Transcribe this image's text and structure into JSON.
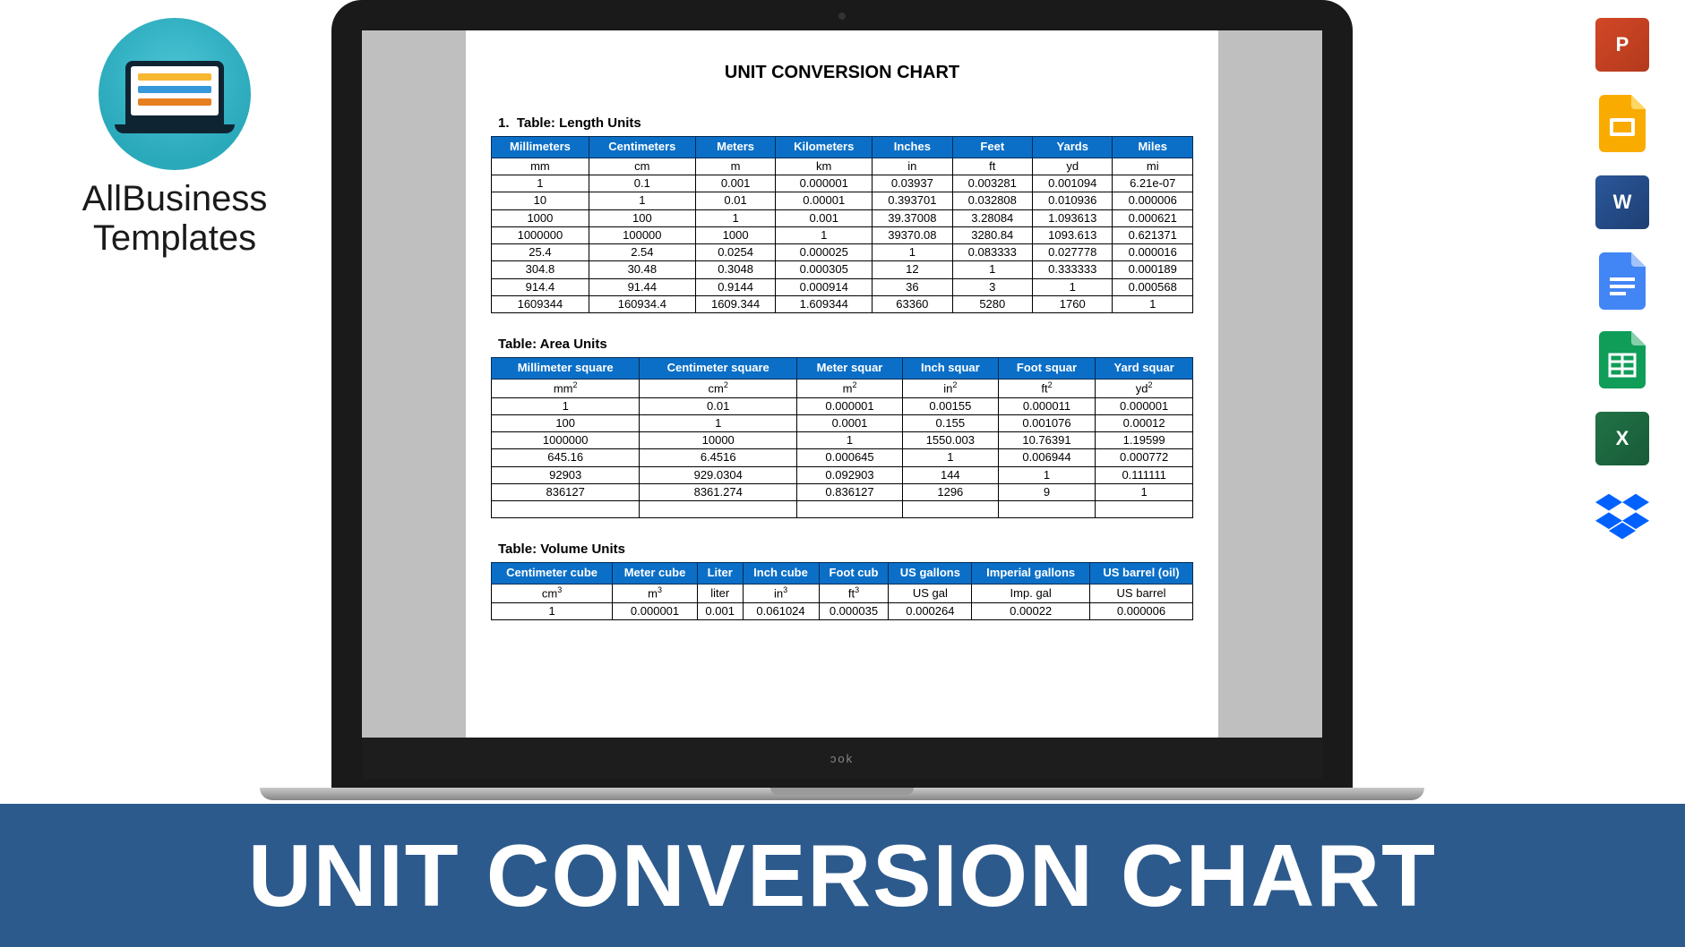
{
  "brand": {
    "name_line1": "AllBusiness",
    "name_line2": "Templates",
    "logo_bg": "#2aa9bb",
    "logo_laptop_color": "#0f2433"
  },
  "footer": {
    "title": "UNIT CONVERSION CHART",
    "bg_color": "#2d5a8c",
    "text_color": "#ffffff"
  },
  "app_icons": [
    {
      "name": "powerpoint-icon",
      "label": "P",
      "kind": "ppt"
    },
    {
      "name": "google-slides-icon",
      "label": "",
      "kind": "slides"
    },
    {
      "name": "word-icon",
      "label": "W",
      "kind": "word"
    },
    {
      "name": "google-docs-icon",
      "label": "",
      "kind": "docs"
    },
    {
      "name": "google-sheets-icon",
      "label": "",
      "kind": "sheets"
    },
    {
      "name": "excel-icon",
      "label": "X",
      "kind": "excel"
    },
    {
      "name": "dropbox-icon",
      "label": "",
      "kind": "dropbox"
    }
  ],
  "document": {
    "title": "UNIT CONVERSION CHART",
    "sections": [
      {
        "prefix": "1.",
        "label": "Table:  Length Units",
        "table": {
          "type": "table",
          "header_bg": "#0b6fc7",
          "header_fg": "#ffffff",
          "border_color": "#000000",
          "columns": [
            "Millimeters",
            "Centimeters",
            "Meters",
            "Kilometers",
            "Inches",
            "Feet",
            "Yards",
            "Miles"
          ],
          "unit_row": [
            "mm",
            "cm",
            "m",
            "km",
            "in",
            "ft",
            "yd",
            "mi"
          ],
          "rows": [
            [
              "1",
              "0.1",
              "0.001",
              "0.000001",
              "0.03937",
              "0.003281",
              "0.001094",
              "6.21e-07"
            ],
            [
              "10",
              "1",
              "0.01",
              "0.00001",
              "0.393701",
              "0.032808",
              "0.010936",
              "0.000006"
            ],
            [
              "1000",
              "100",
              "1",
              "0.001",
              "39.37008",
              "3.28084",
              "1.093613",
              "0.000621"
            ],
            [
              "1000000",
              "100000",
              "1000",
              "1",
              "39370.08",
              "3280.84",
              "1093.613",
              "0.621371"
            ],
            [
              "25.4",
              "2.54",
              "0.0254",
              "0.000025",
              "1",
              "0.083333",
              "0.027778",
              "0.000016"
            ],
            [
              "304.8",
              "30.48",
              "0.3048",
              "0.000305",
              "12",
              "1",
              "0.333333",
              "0.000189"
            ],
            [
              "914.4",
              "91.44",
              "0.9144",
              "0.000914",
              "36",
              "3",
              "1",
              "0.000568"
            ],
            [
              "1609344",
              "160934.4",
              "1609.344",
              "1.609344",
              "63360",
              "5280",
              "1760",
              "1"
            ]
          ]
        }
      },
      {
        "prefix": "",
        "label": "Table:  Area Units",
        "table": {
          "type": "table",
          "header_bg": "#0b6fc7",
          "header_fg": "#ffffff",
          "border_color": "#000000",
          "columns": [
            "Millimeter square",
            "Centimeter square",
            "Meter squar",
            "Inch squar",
            "Foot squar",
            "Yard squar"
          ],
          "unit_row_html": [
            "mm<span class='sup'>2</span>",
            "cm<span class='sup'>2</span>",
            "m<span class='sup'>2</span>",
            "in<span class='sup'>2</span>",
            "ft<span class='sup'>2</span>",
            "yd<span class='sup'>2</span>"
          ],
          "rows": [
            [
              "1",
              "0.01",
              "0.000001",
              "0.00155",
              "0.000011",
              "0.000001"
            ],
            [
              "100",
              "1",
              "0.0001",
              "0.155",
              "0.001076",
              "0.00012"
            ],
            [
              "1000000",
              "10000",
              "1",
              "1550.003",
              "10.76391",
              "1.19599"
            ],
            [
              "645.16",
              "6.4516",
              "0.000645",
              "1",
              "0.006944",
              "0.000772"
            ],
            [
              "92903",
              "929.0304",
              "0.092903",
              "144",
              "1",
              "0.111111"
            ],
            [
              "836127",
              "8361.274",
              "0.836127",
              "1296",
              "9",
              "1"
            ]
          ],
          "blank_columns_in_data": [
            1
          ],
          "trailing_blank_row": true
        }
      },
      {
        "prefix": "",
        "label": "Table:  Volume Units",
        "table": {
          "type": "table",
          "header_bg": "#0b6fc7",
          "header_fg": "#ffffff",
          "border_color": "#000000",
          "columns": [
            "Centimeter cube",
            "Meter cube",
            "Liter",
            "Inch cube",
            "Foot cub",
            "US gallons",
            "Imperial gallons",
            "US barrel (oil)"
          ],
          "unit_row_html": [
            "cm<span class='sup'>3</span>",
            "m<span class='sup'>3</span>",
            "liter",
            "in<span class='sup'>3</span>",
            "ft<span class='sup'>3</span>",
            "US gal",
            "Imp. gal",
            "US barrel"
          ],
          "rows": [
            [
              "1",
              "0.000001",
              "0.001",
              "0.061024",
              "0.000035",
              "0.000264",
              "0.00022",
              "0.000006"
            ]
          ]
        }
      }
    ]
  },
  "laptop": {
    "hinge_text": "ɔok"
  }
}
